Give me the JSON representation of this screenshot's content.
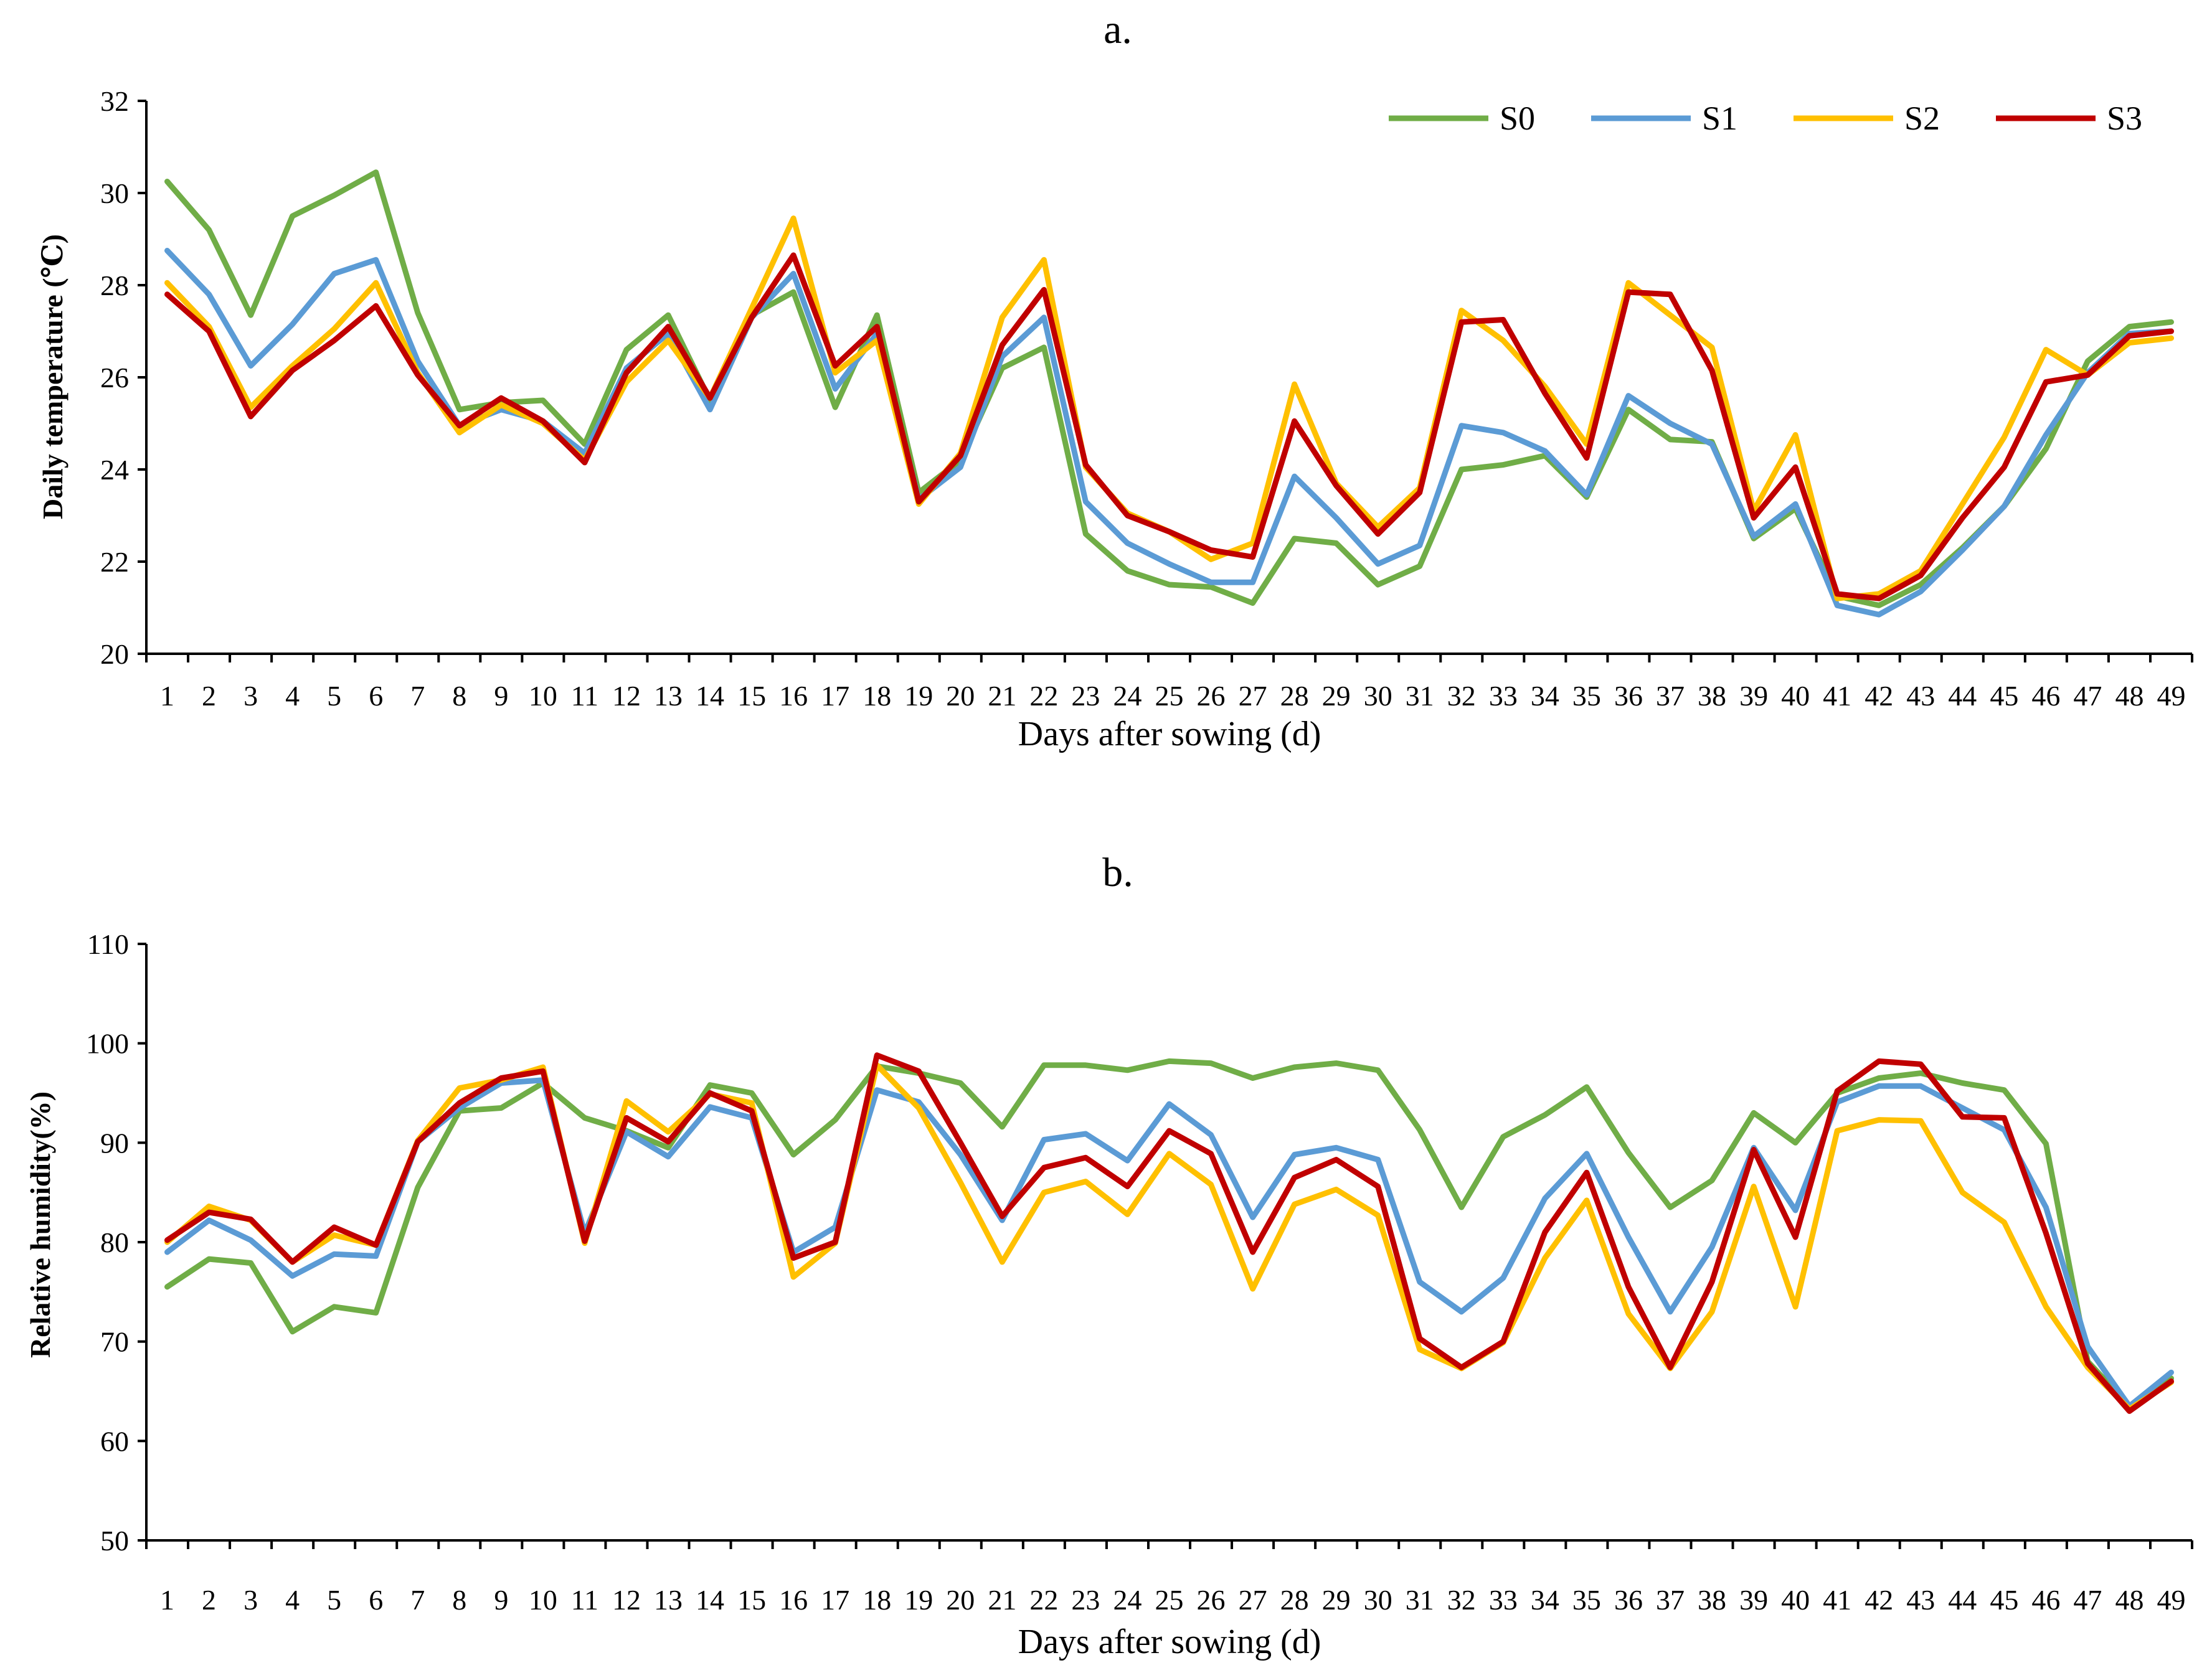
{
  "chart_data": [
    {
      "type": "line",
      "title": "a.",
      "xlabel": "Days after sowing (d)",
      "ylabel": "Daily temperature (℃)",
      "ylim": [
        20,
        32
      ],
      "yticks": [
        20,
        22,
        24,
        26,
        28,
        30,
        32
      ],
      "grid": false,
      "legend": "top-right",
      "categories": [
        "1",
        "2",
        "3",
        "4",
        "5",
        "6",
        "7",
        "8",
        "9",
        "10",
        "11",
        "12",
        "13",
        "14",
        "15",
        "16",
        "17",
        "18",
        "19",
        "20",
        "21",
        "22",
        "23",
        "24",
        "25",
        "26",
        "27",
        "28",
        "29",
        "30",
        "31",
        "32",
        "33",
        "34",
        "35",
        "36",
        "37",
        "38",
        "39",
        "40",
        "41",
        "42",
        "43",
        "44",
        "45",
        "46",
        "47",
        "48",
        "49"
      ],
      "series": [
        {
          "name": "S0",
          "color": "#70AD47",
          "values": [
            30.25,
            29.2,
            27.35,
            29.5,
            29.95,
            30.45,
            27.4,
            25.3,
            25.45,
            25.5,
            24.55,
            26.6,
            27.35,
            25.5,
            27.35,
            27.85,
            25.35,
            27.35,
            23.5,
            24.2,
            26.2,
            26.65,
            22.6,
            21.8,
            21.5,
            21.45,
            21.1,
            22.5,
            22.4,
            21.5,
            21.9,
            24.0,
            24.1,
            24.3,
            23.4,
            25.3,
            24.65,
            24.6,
            22.5,
            23.15,
            21.25,
            21.05,
            21.5,
            22.3,
            23.2,
            24.45,
            26.35,
            27.1,
            27.2
          ]
        },
        {
          "name": "S1",
          "color": "#5B9BD5",
          "values": [
            28.75,
            27.8,
            26.25,
            27.15,
            28.25,
            28.55,
            26.35,
            24.95,
            25.3,
            25.05,
            24.35,
            26.2,
            26.95,
            25.3,
            27.3,
            28.25,
            25.75,
            26.95,
            23.35,
            24.05,
            26.45,
            27.3,
            23.3,
            22.4,
            21.95,
            21.55,
            21.55,
            23.85,
            22.95,
            21.95,
            22.35,
            24.95,
            24.8,
            24.4,
            23.45,
            25.6,
            25.0,
            24.55,
            22.55,
            23.25,
            21.05,
            20.85,
            21.35,
            22.25,
            23.2,
            24.75,
            26.1,
            26.95,
            27.0
          ]
        },
        {
          "name": "S2",
          "color": "#FFC000",
          "values": [
            28.05,
            27.1,
            25.35,
            26.25,
            27.05,
            28.05,
            26.1,
            24.8,
            25.4,
            25.0,
            24.2,
            25.9,
            26.8,
            25.55,
            27.5,
            29.45,
            26.1,
            26.8,
            23.25,
            24.35,
            27.3,
            28.55,
            24.05,
            23.05,
            22.65,
            22.05,
            22.4,
            25.85,
            23.7,
            22.75,
            23.6,
            27.45,
            26.8,
            25.8,
            24.55,
            28.05,
            27.35,
            26.65,
            23.1,
            24.75,
            21.2,
            21.3,
            21.8,
            23.25,
            24.7,
            26.6,
            26.05,
            26.75,
            26.85
          ]
        },
        {
          "name": "S3",
          "color": "#C00000",
          "values": [
            27.8,
            27.0,
            25.15,
            26.15,
            26.8,
            27.55,
            26.05,
            24.95,
            25.55,
            25.05,
            24.15,
            26.1,
            27.1,
            25.55,
            27.3,
            28.65,
            26.25,
            27.1,
            23.3,
            24.3,
            26.7,
            27.9,
            24.1,
            23.0,
            22.65,
            22.25,
            22.1,
            25.05,
            23.65,
            22.6,
            23.5,
            27.2,
            27.25,
            25.65,
            24.25,
            27.85,
            27.8,
            26.15,
            22.95,
            24.05,
            21.3,
            21.2,
            21.7,
            22.95,
            24.05,
            25.9,
            26.05,
            26.9,
            27.0
          ]
        }
      ]
    },
    {
      "type": "line",
      "title": "b.",
      "xlabel": "Days after sowing (d)",
      "ylabel": "Relative humidity(%)",
      "ylim": [
        50,
        110
      ],
      "yticks": [
        50,
        60,
        70,
        80,
        90,
        100,
        110
      ],
      "grid": false,
      "categories": [
        "1",
        "2",
        "3",
        "4",
        "5",
        "6",
        "7",
        "8",
        "9",
        "10",
        "11",
        "12",
        "13",
        "14",
        "15",
        "16",
        "17",
        "18",
        "19",
        "20",
        "21",
        "22",
        "23",
        "24",
        "25",
        "26",
        "27",
        "28",
        "29",
        "30",
        "31",
        "32",
        "33",
        "34",
        "35",
        "36",
        "37",
        "38",
        "39",
        "40",
        "41",
        "42",
        "43",
        "44",
        "45",
        "46",
        "47",
        "48",
        "49"
      ],
      "series": [
        {
          "name": "S0",
          "color": "#70AD47",
          "values": [
            75.5,
            78.3,
            77.9,
            71.0,
            73.5,
            72.9,
            85.5,
            93.2,
            93.5,
            96.0,
            92.5,
            91.2,
            89.5,
            95.8,
            95.0,
            88.8,
            92.3,
            97.7,
            97.0,
            96.0,
            91.6,
            97.8,
            97.8,
            97.3,
            98.2,
            98.0,
            96.5,
            97.6,
            98.0,
            97.3,
            91.3,
            83.5,
            90.6,
            92.8,
            95.6,
            89.0,
            83.5,
            86.2,
            93.0,
            90.0,
            95.0,
            96.5,
            97.0,
            96.0,
            95.3,
            89.9,
            68.0,
            63.5,
            66.3
          ]
        },
        {
          "name": "S1",
          "color": "#5B9BD5",
          "values": [
            79.0,
            82.2,
            80.2,
            76.6,
            78.8,
            78.6,
            90.1,
            93.5,
            96.0,
            96.3,
            80.9,
            91.1,
            88.6,
            93.6,
            92.5,
            79.0,
            81.5,
            95.3,
            94.1,
            88.8,
            82.2,
            90.3,
            90.9,
            88.2,
            93.9,
            90.8,
            82.5,
            88.8,
            89.5,
            88.3,
            76.0,
            73.0,
            76.4,
            84.4,
            88.9,
            80.5,
            73.0,
            79.5,
            89.5,
            83.2,
            94.1,
            95.7,
            95.7,
            93.5,
            91.3,
            83.5,
            69.5,
            63.5,
            66.9
          ]
        },
        {
          "name": "S2",
          "color": "#FFC000",
          "values": [
            80.0,
            83.6,
            82.2,
            78.0,
            80.7,
            79.7,
            90.2,
            95.5,
            96.3,
            97.6,
            79.9,
            94.2,
            91.1,
            94.9,
            94.0,
            76.5,
            79.9,
            97.8,
            93.5,
            86.0,
            78.0,
            85.0,
            86.1,
            82.8,
            88.9,
            85.8,
            75.3,
            83.8,
            85.3,
            82.7,
            69.2,
            67.3,
            69.9,
            78.4,
            84.2,
            72.8,
            67.3,
            73.0,
            85.6,
            73.5,
            91.2,
            92.3,
            92.2,
            85.0,
            82.0,
            73.5,
            67.4,
            63.2,
            65.9
          ]
        },
        {
          "name": "S3",
          "color": "#C00000",
          "values": [
            80.2,
            83.0,
            82.3,
            78.0,
            81.5,
            79.7,
            90.1,
            94.0,
            96.5,
            97.2,
            80.1,
            92.5,
            90.1,
            95.0,
            93.2,
            78.4,
            80.0,
            98.8,
            97.2,
            90.0,
            82.6,
            87.5,
            88.5,
            85.6,
            91.2,
            88.9,
            79.0,
            86.5,
            88.3,
            85.6,
            70.3,
            67.4,
            70.0,
            81.0,
            87.0,
            75.5,
            67.4,
            76.0,
            89.3,
            80.5,
            95.2,
            98.2,
            97.9,
            92.6,
            92.5,
            80.9,
            67.8,
            63.0,
            66.0
          ]
        }
      ]
    }
  ]
}
